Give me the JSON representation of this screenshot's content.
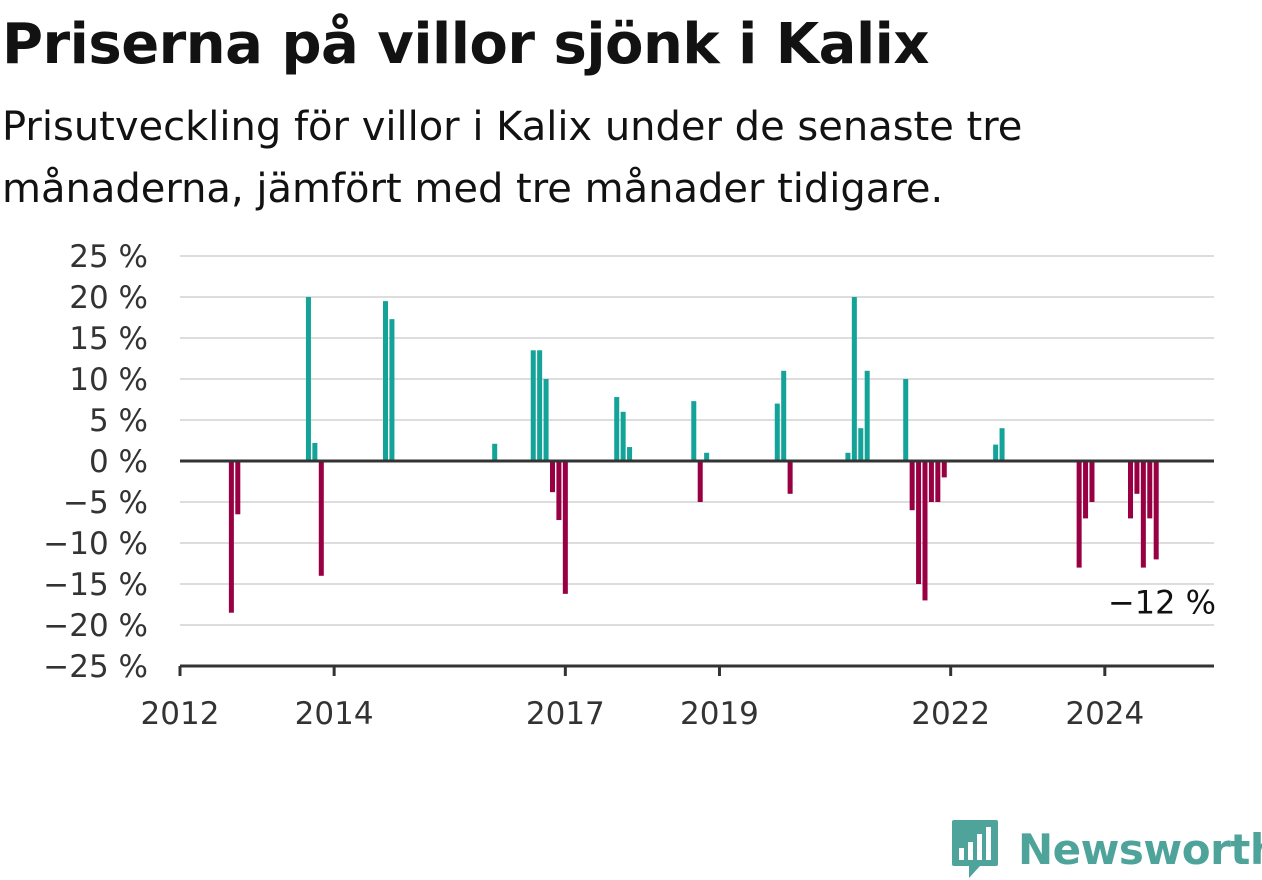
{
  "title": "Priserna på villor sjönk i Kalix",
  "subtitle": "Prisutveckling för villor i Kalix under de senaste tre månaderna, jämfört med tre månader tidigare.",
  "brand": {
    "name": "Newsworthy",
    "icon": "newsworthy-logo-icon"
  },
  "colors": {
    "positive": "#13a398",
    "negative": "#980043",
    "grid": "#dddddd",
    "axis": "#333333"
  },
  "chart_data": {
    "type": "bar",
    "title": "Priserna på villor sjönk i Kalix",
    "subtitle": "Prisutveckling för villor i Kalix under de senaste tre månaderna, jämfört med tre månader tidigare.",
    "xlabel": "",
    "ylabel": "",
    "xlim": [
      "2012-01",
      "2025-06"
    ],
    "ylim": [
      -25,
      25
    ],
    "grid": true,
    "y_ticks": [
      25,
      20,
      15,
      10,
      5,
      0,
      -5,
      -10,
      -15,
      -20,
      -25
    ],
    "y_tick_labels": [
      "25 %",
      "20 %",
      "15 %",
      "10 %",
      "5 %",
      "0 %",
      "−5 %",
      "−10 %",
      "−15 %",
      "−20 %",
      "−25 %"
    ],
    "x_ticks": [
      "2012-01",
      "2014-01",
      "2017-01",
      "2019-01",
      "2022-01",
      "2024-01"
    ],
    "x_tick_labels": [
      "2012",
      "2014",
      "2017",
      "2019",
      "2022",
      "2024"
    ],
    "annotation": {
      "x": "2024-10",
      "y": -12,
      "label": "−12 %"
    },
    "series": [
      {
        "values": [
          {
            "x": "2012-09",
            "y": -18.5
          },
          {
            "x": "2012-10",
            "y": -6.5
          },
          {
            "x": "2013-09",
            "y": 20
          },
          {
            "x": "2013-10",
            "y": 2.2
          },
          {
            "x": "2013-11",
            "y": -14
          },
          {
            "x": "2014-09",
            "y": 19.5
          },
          {
            "x": "2014-10",
            "y": 17.3
          },
          {
            "x": "2016-02",
            "y": 2.1
          },
          {
            "x": "2016-08",
            "y": 13.5
          },
          {
            "x": "2016-09",
            "y": 13.5
          },
          {
            "x": "2016-10",
            "y": 10
          },
          {
            "x": "2016-11",
            "y": -3.8
          },
          {
            "x": "2016-12",
            "y": -7.2
          },
          {
            "x": "2017-01",
            "y": -16.2
          },
          {
            "x": "2017-09",
            "y": 7.8
          },
          {
            "x": "2017-10",
            "y": 6
          },
          {
            "x": "2017-11",
            "y": 1.7
          },
          {
            "x": "2018-09",
            "y": 7.3
          },
          {
            "x": "2018-10",
            "y": -5
          },
          {
            "x": "2018-11",
            "y": 1
          },
          {
            "x": "2019-10",
            "y": 7
          },
          {
            "x": "2019-11",
            "y": 11
          },
          {
            "x": "2019-12",
            "y": -4
          },
          {
            "x": "2020-09",
            "y": 1
          },
          {
            "x": "2020-10",
            "y": 20
          },
          {
            "x": "2020-11",
            "y": 4
          },
          {
            "x": "2020-12",
            "y": 11
          },
          {
            "x": "2021-06",
            "y": 10
          },
          {
            "x": "2021-07",
            "y": -6
          },
          {
            "x": "2021-08",
            "y": -15
          },
          {
            "x": "2021-09",
            "y": -17
          },
          {
            "x": "2021-10",
            "y": -5
          },
          {
            "x": "2021-11",
            "y": -5
          },
          {
            "x": "2021-12",
            "y": -2
          },
          {
            "x": "2022-08",
            "y": 2
          },
          {
            "x": "2022-09",
            "y": 4
          },
          {
            "x": "2023-09",
            "y": -13
          },
          {
            "x": "2023-10",
            "y": -7
          },
          {
            "x": "2023-11",
            "y": -5
          },
          {
            "x": "2024-05",
            "y": -7
          },
          {
            "x": "2024-06",
            "y": -4
          },
          {
            "x": "2024-07",
            "y": -13
          },
          {
            "x": "2024-08",
            "y": -7
          },
          {
            "x": "2024-09",
            "y": -12
          }
        ]
      }
    ]
  }
}
